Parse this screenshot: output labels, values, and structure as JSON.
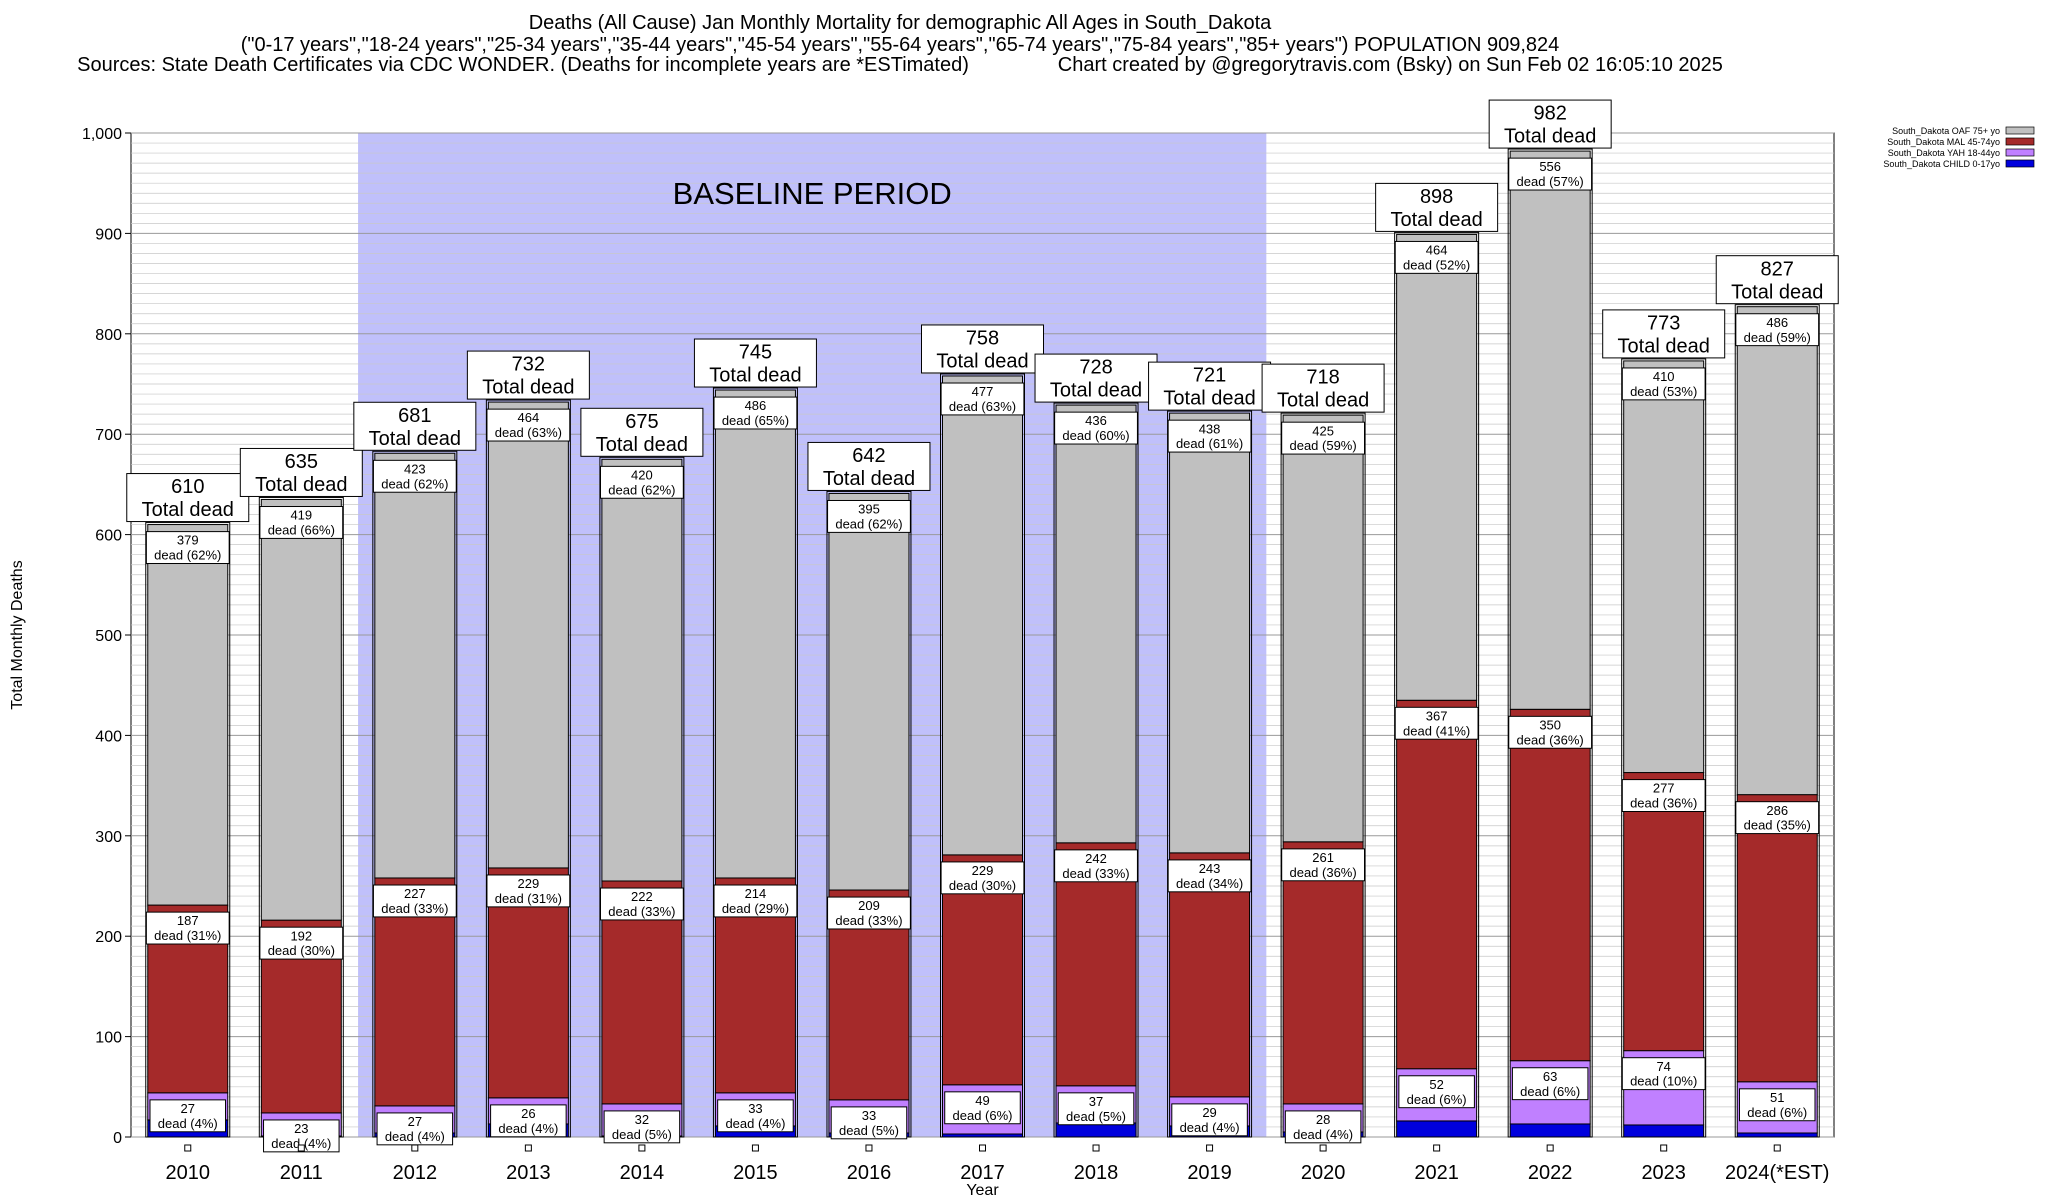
{
  "header": {
    "title": "Deaths (All Cause) Jan Monthly Mortality for demographic All Ages in South_Dakota",
    "subtitle": "(\"0-17 years\",\"18-24 years\",\"25-34 years\",\"35-44 years\",\"45-54 years\",\"55-64 years\",\"65-74 years\",\"75-84 years\",\"85+ years\") POPULATION 909,824",
    "sources": "Sources: State Death Certificates via CDC WONDER. (Deaths for incomplete years are *ESTimated)                Chart created by @gregorytravis.com (Bsky) on Sun Feb 02 16:05:10 2025"
  },
  "colors": {
    "baseline": "#c0c0fb",
    "OAF": "#c0c0c0",
    "MAL": "#a52a2a",
    "YAH": "#c080ff",
    "CHILD": "#0000dd"
  },
  "chart_data": {
    "type": "bar",
    "stacked": true,
    "xlabel": "Year",
    "ylabel": "Total Monthly Deaths",
    "ylim": [
      0,
      1000
    ],
    "yticks": [
      0,
      100,
      200,
      300,
      400,
      500,
      600,
      700,
      800,
      900,
      1000
    ],
    "ytick_labels": [
      "0",
      "100",
      "200",
      "300",
      "400",
      "500",
      "600",
      "700",
      "800",
      "900",
      "1,000"
    ],
    "grid": true,
    "categories": [
      "2010",
      "2011",
      "2012",
      "2013",
      "2014",
      "2015",
      "2016",
      "2017",
      "2018",
      "2019",
      "2020",
      "2021",
      "2022",
      "2023",
      "2024(*EST)"
    ],
    "series": [
      {
        "name": "South_Dakota CHILD 0-17yo",
        "color_key": "CHILD",
        "values": [
          17,
          1,
          4,
          13,
          1,
          11,
          4,
          3,
          14,
          11,
          5,
          16,
          13,
          12,
          4
        ]
      },
      {
        "name": "South_Dakota YAH 18-44yo",
        "color_key": "YAH",
        "values": [
          27,
          23,
          27,
          26,
          32,
          33,
          33,
          49,
          37,
          29,
          28,
          52,
          63,
          74,
          51
        ]
      },
      {
        "name": "South_Dakota MAL 45-74yo",
        "color_key": "MAL",
        "values": [
          187,
          192,
          227,
          229,
          222,
          214,
          209,
          229,
          242,
          243,
          261,
          367,
          350,
          277,
          286
        ]
      },
      {
        "name": "South_Dakota OAF 75+ yo",
        "color_key": "OAF",
        "values": [
          379,
          419,
          423,
          464,
          420,
          486,
          395,
          477,
          436,
          438,
          425,
          464,
          556,
          410,
          486
        ]
      }
    ],
    "segment_labels": {
      "YAH": [
        "27\ndead (4%)",
        "23\ndead (4%)",
        "27\ndead (4%)",
        "26\ndead (4%)",
        "32\ndead (5%)",
        "33\ndead (4%)",
        "33\ndead (5%)",
        "49\ndead (6%)",
        "37\ndead (5%)",
        "29\ndead (4%)",
        "28\ndead (4%)",
        "52\ndead (6%)",
        "63\ndead (6%)",
        "74\ndead (10%)",
        "51\ndead (6%)"
      ],
      "MAL": [
        "187\ndead (31%)",
        "192\ndead (30%)",
        "227\ndead (33%)",
        "229\ndead (31%)",
        "222\ndead (33%)",
        "214\ndead (29%)",
        "209\ndead (33%)",
        "229\ndead (30%)",
        "242\ndead (33%)",
        "243\ndead (34%)",
        "261\ndead (36%)",
        "367\ndead (41%)",
        "350\ndead (36%)",
        "277\ndead (36%)",
        "286\ndead (35%)"
      ],
      "OAF": [
        "379\ndead (62%)",
        "419\ndead (66%)",
        "423\ndead (62%)",
        "464\ndead (63%)",
        "420\ndead (62%)",
        "486\ndead (65%)",
        "395\ndead (62%)",
        "477\ndead (63%)",
        "436\ndead (60%)",
        "438\ndead (61%)",
        "425\ndead (59%)",
        "464\ndead (52%)",
        "556\ndead (57%)",
        "410\ndead (53%)",
        "486\ndead (59%)"
      ]
    },
    "totals": [
      610,
      635,
      681,
      732,
      675,
      745,
      642,
      758,
      728,
      721,
      718,
      898,
      982,
      773,
      827
    ],
    "total_suffix": "Total dead",
    "baseline": {
      "label": "BASELINE PERIOD",
      "from": "2012",
      "to": "2019"
    },
    "legend_placement": "top-right",
    "legend": [
      "South_Dakota OAF 75+ yo",
      "South_Dakota MAL 45-74yo",
      "South_Dakota YAH 18-44yo",
      "South_Dakota CHILD 0-17yo"
    ]
  }
}
